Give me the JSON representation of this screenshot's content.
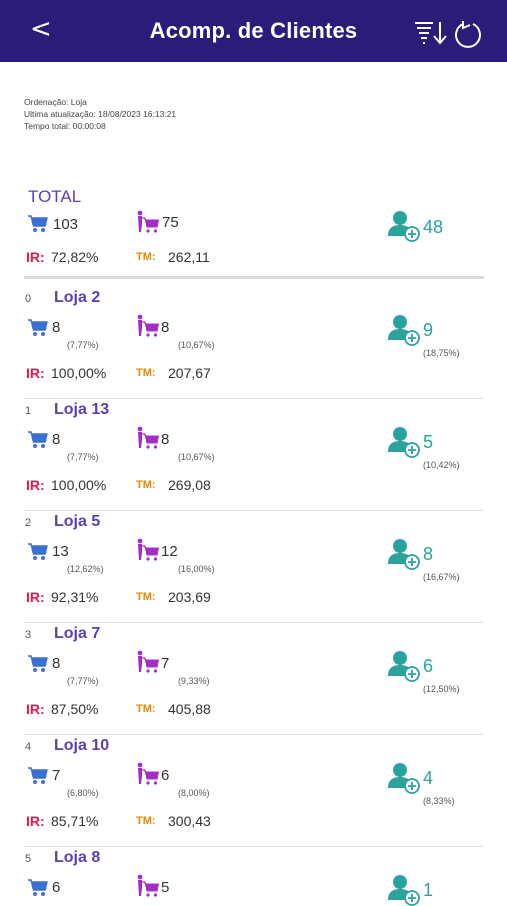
{
  "header": {
    "back": "<",
    "title": "Acomp. de Clientes"
  },
  "meta": {
    "ordering": "Ordenação: Loja",
    "updated": "Ultima atualização: 18/08/2023 16:13:21",
    "total_time": "Tempo total: 00:00:08"
  },
  "colors": {
    "header": "#2b1c7a",
    "store": "#5b3fb5",
    "cart": "#3a6fd8",
    "shop": "#a12fc6",
    "user": "#2aa39a",
    "ir": "#e11b4b",
    "tm": "#e08a00"
  },
  "labels": {
    "ir": "IR:",
    "tm": "TM:"
  },
  "icons": {
    "cart": "cart-icon",
    "shop": "shopping-person-icon",
    "user": "user-add-icon",
    "sort": "sort-descending-icon",
    "refresh": "refresh-icon"
  },
  "total": {
    "title": "TOTAL",
    "cart": "103",
    "shop": "75",
    "new": "48",
    "ir": "72,82%",
    "tm": "262,11"
  },
  "stores": [
    {
      "idx": "0",
      "name": "Loja 2",
      "cart": "8",
      "cart_pct": "(7,77%)",
      "shop": "8",
      "shop_pct": "(10,67%)",
      "new": "9",
      "new_pct": "(18,75%)",
      "ir": "100,00%",
      "tm": "207,67"
    },
    {
      "idx": "1",
      "name": "Loja 13",
      "cart": "8",
      "cart_pct": "(7,77%)",
      "shop": "8",
      "shop_pct": "(10,67%)",
      "new": "5",
      "new_pct": "(10,42%)",
      "ir": "100,00%",
      "tm": "269,08"
    },
    {
      "idx": "2",
      "name": "Loja 5",
      "cart": "13",
      "cart_pct": "(12,62%)",
      "shop": "12",
      "shop_pct": "(16,00%)",
      "new": "8",
      "new_pct": "(16,67%)",
      "ir": "92,31%",
      "tm": "203,69"
    },
    {
      "idx": "3",
      "name": "Loja 7",
      "cart": "8",
      "cart_pct": "(7,77%)",
      "shop": "7",
      "shop_pct": "(9,33%)",
      "new": "6",
      "new_pct": "(12,50%)",
      "ir": "87,50%",
      "tm": "405,88"
    },
    {
      "idx": "4",
      "name": "Loja 10",
      "cart": "7",
      "cart_pct": "(6,80%)",
      "shop": "6",
      "shop_pct": "(8,00%)",
      "new": "4",
      "new_pct": "(8,33%)",
      "ir": "85,71%",
      "tm": "300,43"
    },
    {
      "idx": "5",
      "name": "Loja 8",
      "cart": "6",
      "shop": "5",
      "new": "1"
    }
  ]
}
